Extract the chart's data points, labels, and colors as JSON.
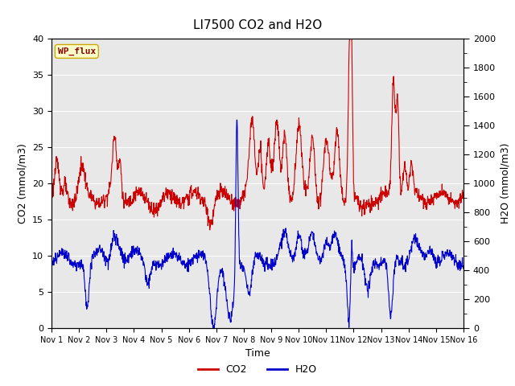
{
  "title": "LI7500 CO2 and H2O",
  "xlabel": "Time",
  "ylabel_left": "CO2 (mmol/m3)",
  "ylabel_right": "H2O (mmol/m3)",
  "annotation": "WP_flux",
  "co2_ylim": [
    0,
    40
  ],
  "h2o_ylim": [
    0,
    2000
  ],
  "x_tick_labels": [
    "Nov 1",
    "Nov 2",
    "Nov 3",
    "Nov 4",
    "Nov 5",
    "Nov 6",
    "Nov 7",
    "Nov 8",
    "Nov 9",
    "Nov 10",
    "Nov 11",
    "Nov 12",
    "Nov 13",
    "Nov 14",
    "Nov 15",
    "Nov 16"
  ],
  "co2_color": "#CC0000",
  "h2o_color": "#0000CC",
  "bg_color": "#E8E8E8",
  "annotation_bg": "#FFFFCC",
  "annotation_border": "#CCAA00",
  "annotation_text_color": "#880000",
  "fig_bg": "#FFFFFF",
  "legend_co2": "CO2",
  "legend_h2o": "H2O",
  "n_days": 15,
  "pts_per_day": 96
}
